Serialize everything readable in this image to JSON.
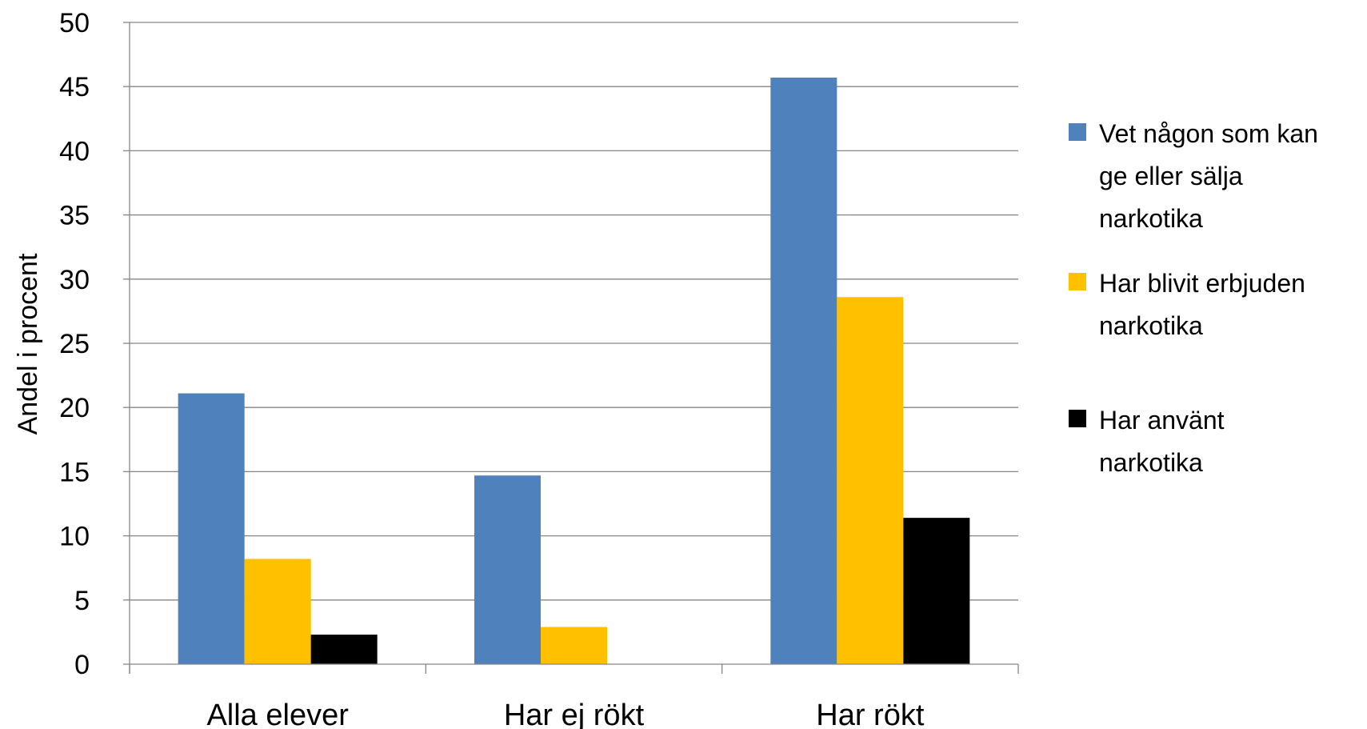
{
  "chart_data": {
    "type": "bar",
    "title": "",
    "xlabel": "",
    "ylabel": "Andel i procent",
    "ylim": [
      0,
      50
    ],
    "yticks": [
      0,
      5,
      10,
      15,
      20,
      25,
      30,
      35,
      40,
      45,
      50
    ],
    "grid": true,
    "legend_position": "right",
    "categories": [
      "Alla elever",
      "Har ej rökt",
      "Har rökt"
    ],
    "series": [
      {
        "name": "Vet någon som kan ge eller sälja narkotika",
        "legend_lines": [
          "Vet någon som kan",
          "ge eller sälja",
          "narkotika"
        ],
        "color": "#4F81BD",
        "values": [
          21.1,
          14.7,
          45.7
        ]
      },
      {
        "name": "Har blivit erbjuden narkotika",
        "legend_lines": [
          "Har blivit erbjuden",
          "narkotika"
        ],
        "color": "#FFC000",
        "values": [
          8.2,
          2.9,
          28.6
        ]
      },
      {
        "name": "Har använt narkotika",
        "legend_lines": [
          "Har använt",
          "narkotika"
        ],
        "color": "#000000",
        "values": [
          2.3,
          0,
          11.4
        ]
      }
    ]
  }
}
